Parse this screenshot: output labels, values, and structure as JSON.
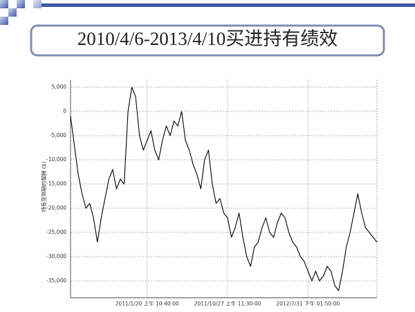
{
  "slide_title": "2010/4/6-2013/4/10买进持有绩效",
  "chart_data": {
    "type": "line",
    "y_label": "持有至到期的報酬 ($)",
    "color": "#000000",
    "grid": true,
    "ylim": [
      -38500,
      6500
    ],
    "yticks": [
      {
        "value": 5000,
        "label": "5,000"
      },
      0,
      {
        "value": -5000,
        "label": "-5,000"
      },
      {
        "value": -10000,
        "label": "-10,000"
      },
      {
        "value": -15000,
        "label": "-15,000"
      },
      {
        "value": -20000,
        "label": "-20,000"
      },
      {
        "value": -25000,
        "label": "-25,000"
      },
      {
        "value": -30000,
        "label": "-30,000"
      },
      {
        "value": -35000,
        "label": "-35,000"
      }
    ],
    "categories": [
      null,
      null,
      null,
      null,
      null,
      null,
      null,
      null,
      null,
      null,
      null,
      null,
      null,
      null,
      null,
      null,
      null,
      null,
      null,
      null,
      "2011/1/20 上午 10:40:00",
      null,
      null,
      null,
      null,
      null,
      null,
      null,
      null,
      null,
      null,
      null,
      null,
      null,
      null,
      null,
      null,
      null,
      null,
      null,
      null,
      "2011/10/27 上午 11:30:00",
      null,
      null,
      null,
      null,
      null,
      null,
      null,
      null,
      null,
      null,
      null,
      null,
      null,
      null,
      null,
      null,
      null,
      null,
      null,
      null,
      "2012/7/31 下午 01:50:00",
      null,
      null,
      null,
      null,
      null,
      null,
      null,
      null,
      null,
      null,
      null,
      null,
      null,
      null,
      null,
      null,
      null,
      null
    ],
    "values": [
      -1000,
      -7000,
      -13000,
      -17000,
      -20000,
      -19000,
      -22000,
      -27000,
      -22000,
      -18000,
      -14000,
      -12000,
      -16000,
      -14000,
      -15000,
      0,
      5000,
      3000,
      -5000,
      -8000,
      -6000,
      -4000,
      -8000,
      -10000,
      -6000,
      -3000,
      -5000,
      -2000,
      -3000,
      0,
      -6000,
      -8000,
      -11000,
      -13000,
      -16000,
      -10000,
      -8000,
      -15000,
      -19000,
      -18000,
      -21000,
      -22000,
      -26000,
      -24000,
      -21000,
      -26000,
      -30000,
      -32000,
      -28000,
      -27000,
      -24000,
      -22000,
      -25000,
      -26000,
      -23000,
      -21000,
      -22000,
      -25000,
      -27000,
      -28000,
      -30000,
      -31000,
      -33000,
      -35000,
      -33000,
      -35000,
      -34000,
      -32000,
      -33000,
      -36000,
      -37000,
      -33000,
      -28000,
      -25000,
      -21000,
      -17000,
      -21000,
      -24000,
      -25000,
      -26000,
      -27000
    ]
  }
}
